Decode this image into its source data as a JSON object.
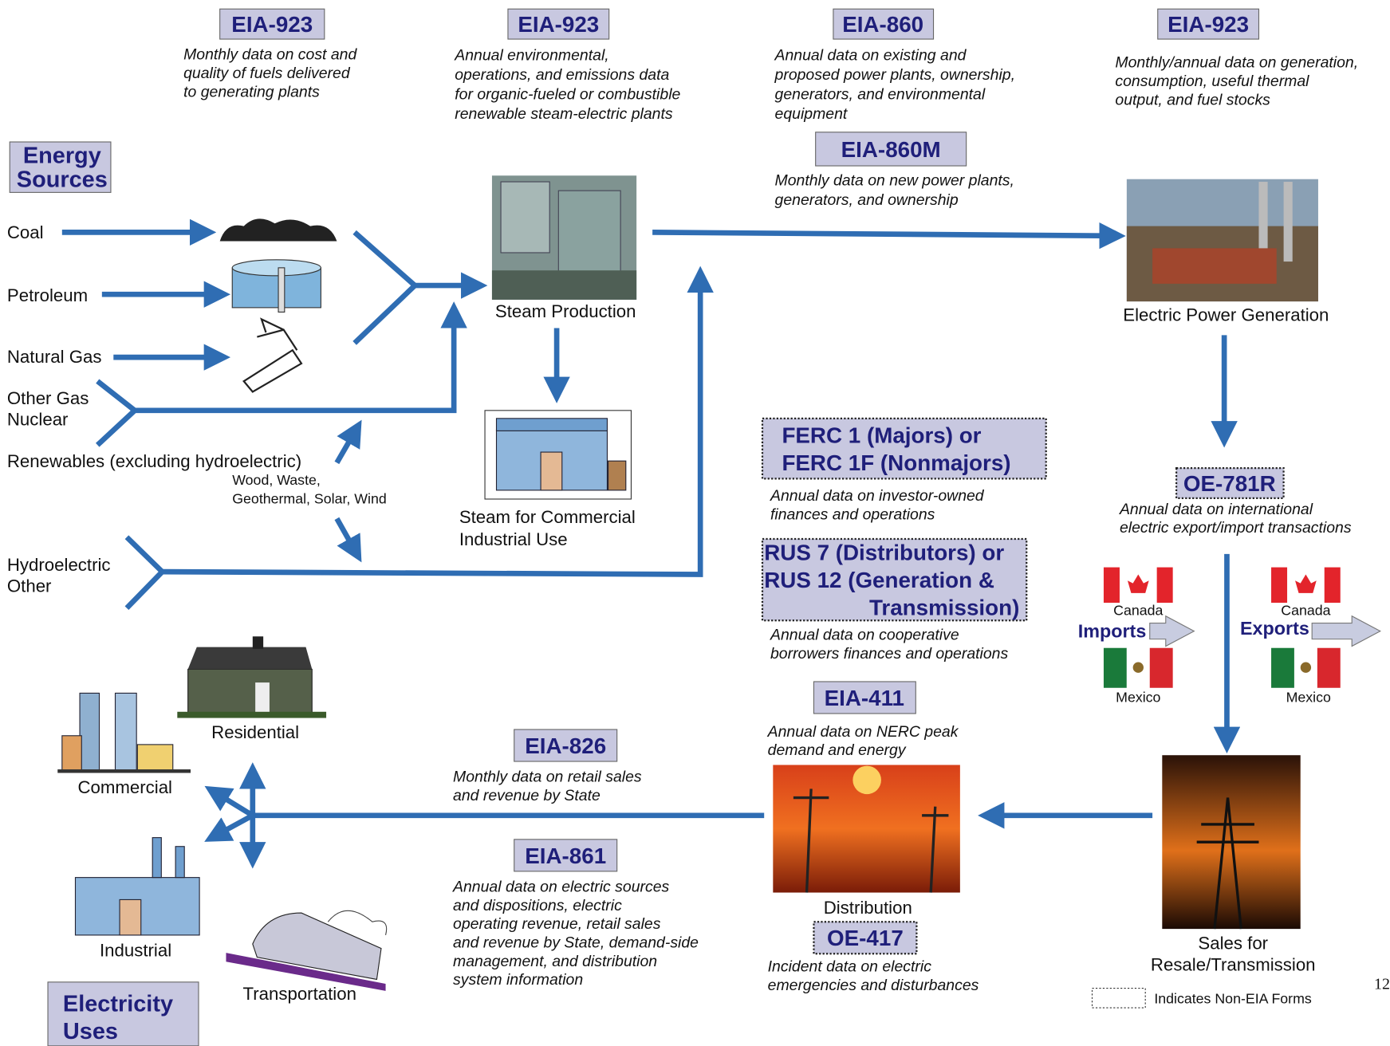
{
  "forms": [
    {
      "code": [
        "EIA-923"
      ],
      "description": [
        "Monthly data on cost and",
        "quality of fuels delivered",
        "to generating plants"
      ]
    },
    {
      "code": [
        "EIA-923"
      ],
      "description": [
        "Annual environmental,",
        "operations, and emissions data",
        "for organic-fueled or combustible",
        "renewable steam-electric plants"
      ]
    },
    {
      "code": [
        "EIA-860"
      ],
      "description": [
        "Annual data on existing and",
        "proposed power plants, ownership,",
        "generators, and environmental",
        "equipment"
      ]
    },
    {
      "code": [
        "EIA-923"
      ],
      "description": [
        "Monthly/annual data on generation,",
        "consumption, useful thermal",
        "output, and fuel stocks"
      ]
    },
    {
      "code": [
        "EIA-860M"
      ],
      "description": [
        "Monthly data on new power plants,",
        "generators, and ownership"
      ]
    },
    {
      "code": [
        "FERC 1 (Majors) or",
        "FERC 1F (Nonmajors)"
      ],
      "non_eia": true,
      "description": [
        "Annual data on investor-owned",
        "finances and operations"
      ]
    },
    {
      "code": [
        "RUS 7 (Distributors) or",
        "RUS 12 (Generation &",
        "Transmission)"
      ],
      "non_eia": true,
      "description": [
        "Annual data on cooperative",
        "borrowers finances and operations"
      ]
    },
    {
      "code": [
        "EIA-411"
      ],
      "description": [
        "Annual data on NERC peak",
        "demand and energy"
      ]
    },
    {
      "code": [
        "OE-781R"
      ],
      "non_eia": true,
      "description": [
        "Annual data on international",
        "electric export/import transactions"
      ]
    },
    {
      "code": [
        "EIA-826"
      ],
      "description": [
        "Monthly data on retail sales",
        "and revenue by State"
      ]
    },
    {
      "code": [
        "EIA-861"
      ],
      "description": [
        "Annual data on electric sources",
        "and dispositions, electric",
        "operating revenue, retail sales",
        "and revenue by State, demand-side",
        "management, and distribution",
        "system information"
      ]
    },
    {
      "code": [
        "OE-417"
      ],
      "non_eia": true,
      "description": [
        "Incident data on electric",
        "emergencies and disturbances"
      ]
    }
  ],
  "energy_sources": {
    "title": [
      "Energy",
      "Sources"
    ],
    "items": [
      "Coal",
      "Petroleum",
      "Natural Gas",
      "Other Gas",
      "Nuclear",
      "Renewables (excluding hydroelectric)",
      "Hydroelectric",
      "Other"
    ],
    "renewables_detail": [
      "Wood, Waste,",
      "Geothermal, Solar, Wind"
    ]
  },
  "nodes": {
    "steam_production": "Steam Production",
    "steam_commercial": [
      "Steam for Commercial",
      "Industrial Use"
    ],
    "power_generation": "Electric Power Generation",
    "sales": [
      "Sales for",
      "Resale/Transmission"
    ],
    "distribution": "Distribution"
  },
  "trade": {
    "imports": "Imports",
    "exports": "Exports",
    "countries": [
      "Canada",
      "Mexico",
      "Canada",
      "Mexico"
    ]
  },
  "uses": {
    "title": [
      "Electricity",
      "Uses"
    ],
    "items": [
      "Residential",
      "Commercial",
      "Industrial",
      "Transportation"
    ]
  },
  "legend": "Indicates Non-EIA Forms",
  "page_number": "12"
}
